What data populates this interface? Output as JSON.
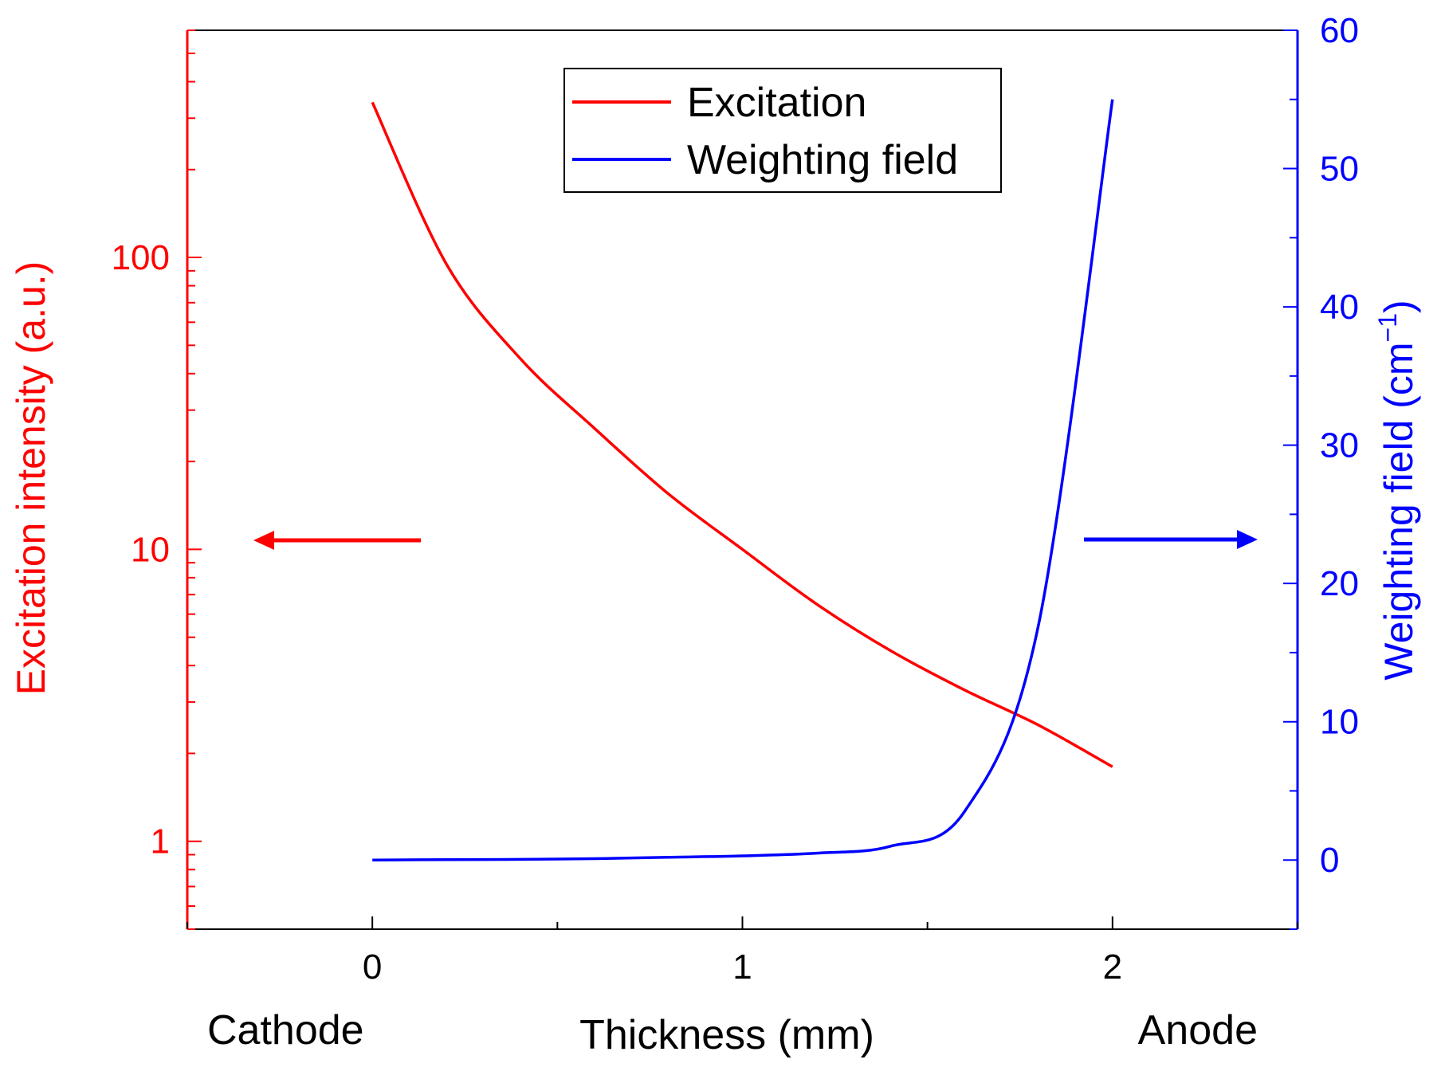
{
  "chart_data": {
    "type": "line",
    "x": [
      0,
      0.2,
      0.4,
      0.6,
      0.8,
      1.0,
      1.2,
      1.4,
      1.6,
      1.8,
      2.0
    ],
    "xlim": [
      -0.5,
      2.5
    ],
    "xticks": [
      0,
      1,
      2
    ],
    "xtick_labels": [
      "0",
      "1",
      "2"
    ],
    "xlabel": "Thickness (mm)",
    "bottom_labels": {
      "left": "Cathode",
      "right": "Anode"
    },
    "y_left": {
      "label": "Excitation intensity (a.u.)",
      "scale": "log",
      "lim": [
        0.5,
        600
      ],
      "ticks": [
        1,
        10,
        100
      ],
      "tick_labels": [
        "1",
        "10",
        "100"
      ],
      "color": "#ff0000"
    },
    "y_right": {
      "label_main": "Weighting field (cm",
      "label_sup": "−1",
      "label_end": ")",
      "scale": "linear",
      "lim": [
        -5,
        60
      ],
      "ticks": [
        0,
        10,
        20,
        30,
        40,
        50,
        60
      ],
      "tick_labels": [
        "0",
        "10",
        "20",
        "30",
        "40",
        "50",
        "60"
      ],
      "color": "#0000ff"
    },
    "series": [
      {
        "name": "Excitation",
        "axis": "left",
        "color": "#ff0000",
        "values": [
          340,
          95,
          45,
          26,
          15.5,
          10,
          6.5,
          4.5,
          3.3,
          2.5,
          1.8
        ]
      },
      {
        "name": "Weighting field",
        "axis": "right",
        "color": "#0000ff",
        "values": [
          0,
          0.03,
          0.05,
          0.1,
          0.2,
          0.3,
          0.5,
          1.0,
          3.5,
          17,
          55
        ]
      }
    ],
    "legend": {
      "position": "top-center",
      "entries": [
        "Excitation",
        "Weighting field"
      ]
    },
    "annotations": [
      {
        "type": "arrow",
        "direction": "left",
        "color": "#ff0000",
        "meaning": "Excitation uses left axis"
      },
      {
        "type": "arrow",
        "direction": "right",
        "color": "#0000ff",
        "meaning": "Weighting field uses right axis"
      }
    ]
  }
}
